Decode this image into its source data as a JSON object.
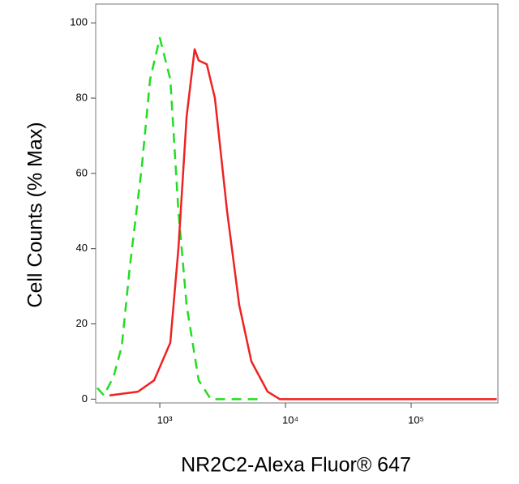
{
  "chart_data": {
    "type": "line",
    "x_label": "NR2C2-Alexa Fluor® 647",
    "y_label": "Cell Counts (% Max)",
    "x_log": true,
    "xlim": [
      309,
      490000
    ],
    "xticks": [
      {
        "value": 1000,
        "label": "10³"
      },
      {
        "value": 10000,
        "label": "10⁴"
      },
      {
        "value": 100000,
        "label": "10⁵"
      }
    ],
    "ylim": [
      -1,
      105
    ],
    "yticks": [
      0,
      20,
      40,
      60,
      80,
      100
    ],
    "series": [
      {
        "color": "#22dd22",
        "dash": true,
        "x": [
          318,
          359,
          429,
          498,
          577,
          721,
          837,
          1000,
          1213,
          1407,
          1633,
          2040,
          2548,
          6220
        ],
        "values": [
          3,
          1,
          6,
          14,
          35,
          62,
          85,
          96,
          85,
          50,
          25,
          5,
          0,
          0
        ]
      },
      {
        "color": "#ee2222",
        "dash": false,
        "x": [
          398,
          670,
          901,
          1213,
          1407,
          1633,
          1893,
          2040,
          2366,
          2746,
          3428,
          4284,
          5355,
          7211,
          9015,
          480000
        ],
        "values": [
          1,
          2,
          5,
          15,
          40,
          75,
          93,
          90,
          89,
          80,
          50,
          25,
          10,
          2,
          0,
          0
        ]
      }
    ]
  }
}
